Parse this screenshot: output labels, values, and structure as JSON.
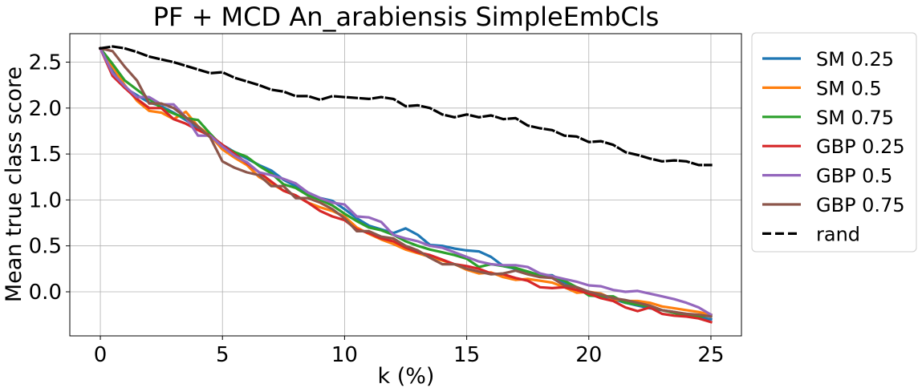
{
  "chart_data": {
    "type": "line",
    "title": "PF + MCD An_arabiensis SimpleEmbCls",
    "xlabel": "k (%)",
    "ylabel": "Mean true class score",
    "xlim": [
      -1.25,
      26.25
    ],
    "ylim": [
      -0.48,
      2.81
    ],
    "xticks": [
      0,
      5,
      10,
      15,
      20,
      25
    ],
    "yticks": [
      0.0,
      0.5,
      1.0,
      1.5,
      2.0,
      2.5
    ],
    "xtick_labels": [
      "0",
      "5",
      "10",
      "15",
      "20",
      "25"
    ],
    "ytick_labels": [
      "0.0",
      "0.5",
      "1.0",
      "1.5",
      "2.0",
      "2.5"
    ],
    "grid": true,
    "legend_position": "outside right",
    "series": [
      {
        "name": "SM 0.25",
        "color": "#1f77b4",
        "dash": "solid",
        "x": [
          0,
          0.5,
          1,
          1.5,
          2,
          2.5,
          3,
          3.5,
          4,
          4.5,
          5,
          5.5,
          6,
          6.5,
          7,
          7.5,
          8,
          8.5,
          9,
          9.5,
          10,
          10.5,
          11,
          11.5,
          12,
          12.5,
          13,
          13.5,
          14,
          14.5,
          15,
          15.5,
          16,
          16.5,
          17,
          17.5,
          18,
          18.5,
          19,
          19.5,
          20,
          20.5,
          21,
          21.5,
          22,
          22.5,
          23,
          23.5,
          24,
          24.5,
          25
        ],
        "y": [
          2.65,
          2.4,
          2.22,
          2.14,
          2.06,
          2.02,
          1.95,
          1.87,
          1.78,
          1.7,
          1.6,
          1.52,
          1.45,
          1.38,
          1.32,
          1.22,
          1.15,
          1.08,
          1.02,
          0.99,
          0.9,
          0.8,
          0.72,
          0.68,
          0.64,
          0.69,
          0.62,
          0.51,
          0.5,
          0.47,
          0.45,
          0.44,
          0.38,
          0.28,
          0.25,
          0.22,
          0.18,
          0.18,
          0.1,
          0.05,
          0.0,
          -0.05,
          -0.08,
          -0.12,
          -0.15,
          -0.18,
          -0.2,
          -0.22,
          -0.25,
          -0.28,
          -0.3
        ]
      },
      {
        "name": "SM 0.5",
        "color": "#ff7f0e",
        "dash": "solid",
        "x": [
          0,
          0.5,
          1,
          1.5,
          2,
          2.5,
          3,
          3.5,
          4,
          4.5,
          5,
          5.5,
          6,
          6.5,
          7,
          7.5,
          8,
          8.5,
          9,
          9.5,
          10,
          10.5,
          11,
          11.5,
          12,
          12.5,
          13,
          13.5,
          14,
          14.5,
          15,
          15.5,
          16,
          16.5,
          17,
          17.5,
          18,
          18.5,
          19,
          19.5,
          20,
          20.5,
          21,
          21.5,
          22,
          22.5,
          23,
          23.5,
          24,
          24.5,
          25
        ],
        "y": [
          2.65,
          2.45,
          2.25,
          2.08,
          1.97,
          1.95,
          1.88,
          1.96,
          1.8,
          1.7,
          1.55,
          1.46,
          1.38,
          1.25,
          1.18,
          1.1,
          1.05,
          0.97,
          0.92,
          0.88,
          0.82,
          0.7,
          0.63,
          0.57,
          0.52,
          0.46,
          0.42,
          0.38,
          0.34,
          0.3,
          0.24,
          0.2,
          0.21,
          0.16,
          0.13,
          0.14,
          0.12,
          0.1,
          0.05,
          -0.01,
          0.0,
          -0.02,
          -0.08,
          -0.1,
          -0.1,
          -0.12,
          -0.16,
          -0.18,
          -0.2,
          -0.22,
          -0.25
        ]
      },
      {
        "name": "SM 0.75",
        "color": "#2ca02c",
        "dash": "solid",
        "x": [
          0,
          0.5,
          1,
          1.5,
          2,
          2.5,
          3,
          3.5,
          4,
          4.5,
          5,
          5.5,
          6,
          6.5,
          7,
          7.5,
          8,
          8.5,
          9,
          9.5,
          10,
          10.5,
          11,
          11.5,
          12,
          12.5,
          13,
          13.5,
          14,
          14.5,
          15,
          15.5,
          16,
          16.5,
          17,
          17.5,
          18,
          18.5,
          19,
          19.5,
          20,
          20.5,
          21,
          21.5,
          22,
          22.5,
          23,
          23.5,
          24,
          24.5,
          25
        ],
        "y": [
          2.65,
          2.48,
          2.3,
          2.2,
          2.1,
          2.0,
          1.94,
          1.89,
          1.87,
          1.72,
          1.58,
          1.52,
          1.47,
          1.37,
          1.29,
          1.17,
          1.13,
          1.05,
          1.0,
          0.94,
          0.85,
          0.77,
          0.7,
          0.67,
          0.62,
          0.55,
          0.5,
          0.46,
          0.43,
          0.4,
          0.36,
          0.27,
          0.3,
          0.28,
          0.26,
          0.22,
          0.18,
          0.17,
          0.12,
          0.05,
          -0.04,
          -0.05,
          -0.05,
          -0.12,
          -0.14,
          -0.16,
          -0.2,
          -0.23,
          -0.26,
          -0.27,
          -0.26
        ]
      },
      {
        "name": "GBP 0.25",
        "color": "#d62728",
        "dash": "solid",
        "x": [
          0,
          0.5,
          1,
          1.5,
          2,
          2.5,
          3,
          3.5,
          4,
          4.5,
          5,
          5.5,
          6,
          6.5,
          7,
          7.5,
          8,
          8.5,
          9,
          9.5,
          10,
          10.5,
          11,
          11.5,
          12,
          12.5,
          13,
          13.5,
          14,
          14.5,
          15,
          15.5,
          16,
          16.5,
          17,
          17.5,
          18,
          18.5,
          19,
          19.5,
          20,
          20.5,
          21,
          21.5,
          22,
          22.5,
          23,
          23.5,
          24,
          24.5,
          25
        ],
        "y": [
          2.65,
          2.35,
          2.22,
          2.1,
          2.0,
          2.0,
          1.88,
          1.83,
          1.76,
          1.7,
          1.6,
          1.5,
          1.4,
          1.3,
          1.2,
          1.1,
          1.05,
          0.97,
          0.88,
          0.82,
          0.78,
          0.68,
          0.64,
          0.58,
          0.55,
          0.48,
          0.43,
          0.4,
          0.35,
          0.3,
          0.28,
          0.25,
          0.2,
          0.19,
          0.15,
          0.12,
          0.05,
          0.04,
          0.05,
          0.02,
          -0.02,
          -0.07,
          -0.1,
          -0.17,
          -0.21,
          -0.17,
          -0.24,
          -0.26,
          -0.27,
          -0.29,
          -0.33
        ]
      },
      {
        "name": "GBP 0.5",
        "color": "#9467bd",
        "dash": "solid",
        "x": [
          0,
          0.5,
          1,
          1.5,
          2,
          2.5,
          3,
          3.5,
          4,
          4.5,
          5,
          5.5,
          6,
          6.5,
          7,
          7.5,
          8,
          8.5,
          9,
          9.5,
          10,
          10.5,
          11,
          11.5,
          12,
          12.5,
          13,
          13.5,
          14,
          14.5,
          15,
          15.5,
          16,
          16.5,
          17,
          17.5,
          18,
          18.5,
          19,
          19.5,
          20,
          20.5,
          21,
          21.5,
          22,
          22.5,
          23,
          23.5,
          24,
          24.5,
          25
        ],
        "y": [
          2.65,
          2.38,
          2.24,
          2.12,
          2.12,
          2.04,
          2.04,
          1.9,
          1.7,
          1.7,
          1.58,
          1.48,
          1.41,
          1.3,
          1.27,
          1.23,
          1.18,
          1.08,
          1.02,
          0.97,
          0.95,
          0.82,
          0.81,
          0.76,
          0.62,
          0.58,
          0.55,
          0.5,
          0.48,
          0.43,
          0.38,
          0.33,
          0.3,
          0.29,
          0.29,
          0.27,
          0.2,
          0.17,
          0.14,
          0.11,
          0.07,
          0.06,
          0.02,
          0.0,
          0.01,
          -0.02,
          -0.05,
          -0.08,
          -0.12,
          -0.17,
          -0.25
        ]
      },
      {
        "name": "GBP 0.75",
        "color": "#8c564b",
        "dash": "solid",
        "x": [
          0,
          0.5,
          1,
          1.5,
          2,
          2.5,
          3,
          3.5,
          4,
          4.5,
          5,
          5.5,
          6,
          6.5,
          7,
          7.5,
          8,
          8.5,
          9,
          9.5,
          10,
          10.5,
          11,
          11.5,
          12,
          12.5,
          13,
          13.5,
          14,
          14.5,
          15,
          15.5,
          16,
          16.5,
          17,
          17.5,
          18,
          18.5,
          19,
          19.5,
          20,
          20.5,
          21,
          21.5,
          22,
          22.5,
          23,
          23.5,
          24,
          24.5,
          25
        ],
        "y": [
          2.65,
          2.62,
          2.45,
          2.3,
          2.05,
          2.05,
          2.0,
          1.9,
          1.8,
          1.68,
          1.42,
          1.35,
          1.3,
          1.27,
          1.15,
          1.15,
          1.02,
          1.02,
          0.97,
          0.9,
          0.8,
          0.66,
          0.66,
          0.6,
          0.58,
          0.5,
          0.45,
          0.37,
          0.3,
          0.3,
          0.25,
          0.22,
          0.19,
          0.2,
          0.23,
          0.19,
          0.16,
          0.15,
          0.07,
          0.05,
          0.0,
          -0.03,
          -0.07,
          -0.09,
          -0.12,
          -0.15,
          -0.2,
          -0.22,
          -0.24,
          -0.25,
          -0.27
        ]
      },
      {
        "name": "rand",
        "color": "#000000",
        "dash": "dashed",
        "x": [
          0,
          0.5,
          1,
          1.5,
          2,
          2.5,
          3,
          3.5,
          4,
          4.5,
          5,
          5.5,
          6,
          6.5,
          7,
          7.5,
          8,
          8.5,
          9,
          9.5,
          10,
          10.5,
          11,
          11.5,
          12,
          12.5,
          13,
          13.5,
          14,
          14.5,
          15,
          15.5,
          16,
          16.5,
          17,
          17.5,
          18,
          18.5,
          19,
          19.5,
          20,
          20.5,
          21,
          21.5,
          22,
          22.5,
          23,
          23.5,
          24,
          24.5,
          25
        ],
        "y": [
          2.65,
          2.67,
          2.65,
          2.61,
          2.56,
          2.53,
          2.5,
          2.46,
          2.42,
          2.38,
          2.39,
          2.33,
          2.29,
          2.25,
          2.2,
          2.18,
          2.13,
          2.13,
          2.09,
          2.13,
          2.12,
          2.11,
          2.1,
          2.12,
          2.1,
          2.02,
          2.03,
          2.0,
          1.93,
          1.9,
          1.93,
          1.9,
          1.92,
          1.88,
          1.89,
          1.81,
          1.78,
          1.76,
          1.7,
          1.69,
          1.63,
          1.64,
          1.6,
          1.52,
          1.49,
          1.45,
          1.42,
          1.43,
          1.42,
          1.38,
          1.38
        ]
      }
    ]
  }
}
